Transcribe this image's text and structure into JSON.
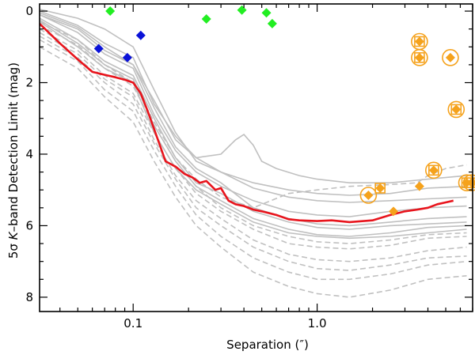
{
  "chart_data": {
    "type": "scatter",
    "title": "",
    "xlabel": "Separation (″)",
    "ylabel_prefix": "5σ ",
    "ylabel_italic": "K",
    "ylabel_suffix": "–band Detection Limit (mag)",
    "xscale": "log",
    "xlim": [
      0.031,
      7.0
    ],
    "ylim": [
      8.4,
      -0.2
    ],
    "x_ticks": [
      {
        "value": 0.1,
        "label": "0.1"
      },
      {
        "value": 1.0,
        "label": "1.0"
      }
    ],
    "y_ticks": [
      {
        "value": 0,
        "label": "0"
      },
      {
        "value": 2,
        "label": "2"
      },
      {
        "value": 4,
        "label": "4"
      },
      {
        "value": 6,
        "label": "6"
      },
      {
        "value": 8,
        "label": "8"
      }
    ],
    "colors": {
      "median": "#e8141c",
      "grey": "#c0c0c0",
      "green": "#22ee22",
      "blue": "#0a12d8",
      "orange": "#f5a21c"
    },
    "median_curve": {
      "name": "median contrast curve",
      "x": [
        0.031,
        0.04,
        0.05,
        0.06,
        0.07,
        0.08,
        0.09,
        0.1,
        0.11,
        0.12,
        0.13,
        0.15,
        0.17,
        0.19,
        0.21,
        0.23,
        0.25,
        0.28,
        0.3,
        0.33,
        0.36,
        0.4,
        0.45,
        0.5,
        0.6,
        0.7,
        0.8,
        1.0,
        1.2,
        1.5,
        2.0,
        2.5,
        3.0,
        3.5,
        4.0,
        4.5,
        5.0,
        5.5
      ],
      "y": [
        0.35,
        0.9,
        1.35,
        1.7,
        1.78,
        1.85,
        1.92,
        2.0,
        2.3,
        2.8,
        3.3,
        4.2,
        4.35,
        4.55,
        4.65,
        4.8,
        4.75,
        5.0,
        4.95,
        5.3,
        5.4,
        5.45,
        5.55,
        5.6,
        5.7,
        5.82,
        5.85,
        5.87,
        5.85,
        5.9,
        5.85,
        5.7,
        5.6,
        5.55,
        5.5,
        5.4,
        5.35,
        5.3
      ]
    },
    "background_curves": {
      "name": "individual target contrast curves",
      "solid": [
        {
          "x": [
            0.031,
            0.05,
            0.07,
            0.1,
            0.13,
            0.17,
            0.22,
            0.3,
            0.45,
            0.7,
            1.0,
            1.5,
            2.5,
            4.0,
            6.5
          ],
          "y": [
            0.0,
            0.4,
            0.9,
            1.3,
            2.6,
            3.5,
            4.1,
            4.5,
            4.8,
            5.0,
            5.1,
            5.15,
            5.1,
            4.95,
            4.9
          ]
        },
        {
          "x": [
            0.031,
            0.05,
            0.07,
            0.1,
            0.13,
            0.17,
            0.22,
            0.3,
            0.45,
            0.7,
            1.0,
            1.5,
            2.5,
            4.0,
            6.5
          ],
          "y": [
            -0.05,
            0.2,
            0.5,
            1.0,
            2.2,
            3.4,
            4.2,
            4.5,
            4.95,
            5.2,
            5.3,
            5.35,
            5.3,
            5.25,
            5.2
          ]
        },
        {
          "x": [
            0.031,
            0.05,
            0.07,
            0.1,
            0.13,
            0.17,
            0.22,
            0.3,
            0.45,
            0.7,
            1.0,
            1.5,
            2.5,
            4.0,
            6.5
          ],
          "y": [
            0.1,
            0.6,
            1.2,
            1.6,
            2.9,
            3.9,
            4.5,
            4.9,
            5.3,
            5.6,
            5.7,
            5.75,
            5.6,
            5.5,
            5.45
          ]
        },
        {
          "x": [
            0.031,
            0.05,
            0.07,
            0.1,
            0.13,
            0.17,
            0.22,
            0.3,
            0.45,
            0.7,
            1.0,
            1.5,
            2.5,
            4.0,
            6.5
          ],
          "y": [
            0.2,
            0.8,
            1.4,
            1.8,
            3.0,
            4.1,
            4.8,
            5.1,
            5.6,
            5.9,
            6.05,
            6.1,
            6.0,
            5.95,
            5.9
          ]
        },
        {
          "x": [
            0.031,
            0.05,
            0.07,
            0.1,
            0.13,
            0.17,
            0.22,
            0.3,
            0.45,
            0.7,
            1.0,
            1.5,
            2.5,
            4.0,
            6.5
          ],
          "y": [
            0.3,
            1.0,
            1.6,
            2.0,
            3.4,
            4.4,
            5.0,
            5.4,
            5.9,
            6.2,
            6.3,
            6.35,
            6.3,
            6.2,
            6.1
          ]
        },
        {
          "x": [
            0.031,
            0.05,
            0.07,
            0.1,
            0.13,
            0.17,
            0.22,
            0.3,
            0.45,
            0.7,
            1.0,
            1.5,
            2.5,
            4.0,
            6.5
          ],
          "y": [
            0.05,
            0.45,
            1.0,
            1.5,
            2.7,
            3.8,
            4.4,
            4.8,
            5.5,
            5.8,
            5.95,
            6.0,
            5.9,
            5.8,
            5.75
          ]
        },
        {
          "x": [
            0.031,
            0.05,
            0.07,
            0.1,
            0.13,
            0.17,
            0.22,
            0.3,
            0.45,
            0.7,
            1.0,
            1.5,
            2.5,
            4.0,
            6.5
          ],
          "y": [
            0.25,
            0.9,
            1.5,
            1.9,
            3.2,
            4.2,
            4.9,
            5.3,
            5.8,
            6.1,
            6.25,
            6.3,
            6.2,
            6.05,
            6.0
          ]
        },
        {
          "x": [
            0.031,
            0.05,
            0.07,
            0.1,
            0.13,
            0.17,
            0.22,
            0.3,
            0.36,
            0.4,
            0.45,
            0.5,
            0.6,
            0.8,
            1.0,
            1.5,
            2.5,
            4.0,
            6.5
          ],
          "y": [
            0.1,
            0.5,
            1.1,
            1.5,
            2.5,
            3.6,
            4.1,
            4.0,
            3.6,
            3.45,
            3.75,
            4.2,
            4.4,
            4.6,
            4.7,
            4.8,
            4.8,
            4.7,
            4.6
          ]
        }
      ],
      "dashed": [
        {
          "x": [
            0.031,
            0.05,
            0.07,
            0.1,
            0.13,
            0.17,
            0.22,
            0.3,
            0.45,
            0.7,
            1.0,
            1.5,
            2.5,
            4.0,
            6.5
          ],
          "y": [
            0.6,
            1.2,
            1.9,
            2.4,
            3.6,
            4.6,
            5.3,
            5.8,
            6.4,
            6.8,
            6.95,
            7.0,
            6.9,
            6.7,
            6.6
          ]
        },
        {
          "x": [
            0.031,
            0.05,
            0.07,
            0.1,
            0.13,
            0.17,
            0.22,
            0.3,
            0.45,
            0.7,
            1.0,
            1.5,
            2.5,
            4.0,
            6.5
          ],
          "y": [
            0.8,
            1.4,
            2.2,
            2.8,
            3.9,
            4.9,
            5.7,
            6.3,
            6.9,
            7.3,
            7.5,
            7.5,
            7.35,
            7.1,
            7.0
          ]
        },
        {
          "x": [
            0.031,
            0.05,
            0.07,
            0.1,
            0.13,
            0.17,
            0.22,
            0.3,
            0.45,
            0.7,
            1.0,
            1.5,
            2.5,
            4.0,
            6.5
          ],
          "y": [
            1.0,
            1.6,
            2.4,
            3.1,
            4.2,
            5.2,
            6.0,
            6.6,
            7.3,
            7.7,
            7.9,
            8.0,
            7.8,
            7.5,
            7.4
          ]
        },
        {
          "x": [
            0.031,
            0.05,
            0.07,
            0.1,
            0.13,
            0.17,
            0.22,
            0.3,
            0.45,
            0.7,
            1.0,
            1.5,
            2.5,
            4.0,
            6.5
          ],
          "y": [
            0.5,
            1.1,
            1.8,
            2.3,
            3.4,
            4.4,
            5.1,
            5.6,
            6.1,
            6.5,
            6.6,
            6.65,
            6.55,
            6.35,
            6.3
          ]
        },
        {
          "x": [
            0.031,
            0.05,
            0.07,
            0.1,
            0.13,
            0.17,
            0.22,
            0.3,
            0.45,
            0.7,
            1.0,
            1.5,
            2.5,
            4.0,
            6.5
          ],
          "y": [
            0.7,
            1.3,
            2.0,
            2.6,
            3.7,
            4.7,
            5.5,
            6.0,
            6.6,
            7.0,
            7.2,
            7.25,
            7.1,
            6.9,
            6.85
          ]
        },
        {
          "x": [
            0.031,
            0.05,
            0.07,
            0.1,
            0.13,
            0.17,
            0.22,
            0.3,
            0.45,
            0.7,
            1.0,
            1.5,
            2.5,
            4.0,
            6.5
          ],
          "y": [
            0.4,
            0.95,
            1.6,
            2.1,
            3.2,
            4.2,
            4.9,
            5.5,
            6.0,
            6.3,
            6.45,
            6.5,
            6.4,
            6.25,
            6.2
          ]
        },
        {
          "x": [
            0.031,
            0.05,
            0.07,
            0.1,
            0.13,
            0.17,
            0.22,
            0.3,
            0.45,
            0.7,
            1.0,
            1.5,
            2.5,
            3.5,
            4.0,
            5.0,
            6.5
          ],
          "y": [
            0.3,
            0.8,
            1.5,
            2.0,
            3.1,
            4.1,
            4.7,
            5.2,
            5.5,
            5.1,
            5.0,
            4.9,
            4.85,
            4.8,
            4.6,
            4.4,
            4.3
          ]
        }
      ]
    },
    "series": [
      {
        "name": "green diamonds",
        "color_key": "green",
        "marker": "diamond",
        "points": [
          [
            0.075,
            0.0
          ],
          [
            0.25,
            0.22
          ],
          [
            0.39,
            -0.03
          ],
          [
            0.53,
            0.05
          ],
          [
            0.57,
            0.35
          ]
        ]
      },
      {
        "name": "blue diamonds",
        "color_key": "blue",
        "marker": "diamond",
        "points": [
          [
            0.065,
            1.05
          ],
          [
            0.093,
            1.3
          ],
          [
            0.11,
            0.68
          ]
        ]
      },
      {
        "name": "orange diamonds",
        "color_key": "orange",
        "marker": "diamond",
        "points": [
          [
            1.9,
            5.15
          ],
          [
            2.2,
            4.95
          ],
          [
            2.6,
            5.6
          ],
          [
            3.6,
            0.85
          ],
          [
            3.6,
            1.3
          ],
          [
            3.6,
            4.9
          ],
          [
            4.3,
            4.45
          ],
          [
            5.3,
            1.3
          ],
          [
            5.7,
            2.75
          ],
          [
            6.5,
            4.8
          ],
          [
            6.9,
            4.8
          ]
        ]
      }
    ],
    "annotations": {
      "circled_points": [
        [
          1.9,
          5.15
        ],
        [
          3.6,
          0.85
        ],
        [
          3.6,
          1.3
        ],
        [
          4.3,
          4.45
        ],
        [
          5.3,
          1.3
        ],
        [
          5.7,
          2.75
        ],
        [
          6.5,
          4.8
        ],
        [
          6.9,
          4.8
        ]
      ],
      "boxed_points": [
        [
          2.2,
          4.95
        ],
        [
          3.6,
          0.85
        ],
        [
          3.6,
          1.3
        ],
        [
          4.3,
          4.45
        ],
        [
          5.7,
          2.75
        ],
        [
          6.5,
          4.8
        ],
        [
          6.9,
          4.8
        ]
      ]
    }
  }
}
